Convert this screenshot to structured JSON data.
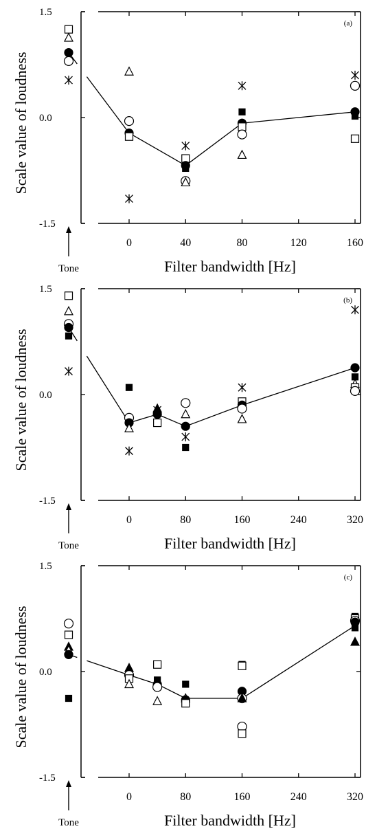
{
  "figure": {
    "tone_label": "Tone"
  },
  "chart_data": [
    {
      "type": "scatter",
      "panel_label": "(a)",
      "xlabel": "Filter bandwidth [Hz]",
      "ylabel": "Scale value of loudness",
      "xticks": [
        0,
        40,
        80,
        120,
        160
      ],
      "yticks": [
        -1.5,
        0.0,
        1.5
      ],
      "ytick_labels": [
        "-1.5",
        "0.0",
        "1.5"
      ],
      "xlim": [
        0,
        160
      ],
      "ylim": [
        -1.5,
        1.5
      ],
      "tone": {
        "mean": 0.92,
        "points": [
          {
            "marker": "open-square",
            "y": 1.25
          },
          {
            "marker": "open-triangle",
            "y": 1.13
          },
          {
            "marker": "filled-circle",
            "y": 0.92
          },
          {
            "marker": "open-circle",
            "y": 0.8
          },
          {
            "marker": "asterisk",
            "y": 0.53
          }
        ]
      },
      "line": {
        "x": [
          0,
          40,
          80,
          160
        ],
        "y": [
          -0.22,
          -0.68,
          -0.08,
          0.08
        ]
      },
      "points": [
        {
          "marker": "open-triangle",
          "x": 0,
          "y": 0.65
        },
        {
          "marker": "open-circle",
          "x": 0,
          "y": -0.05
        },
        {
          "marker": "filled-circle",
          "x": 0,
          "y": -0.22
        },
        {
          "marker": "open-square",
          "x": 0,
          "y": -0.27
        },
        {
          "marker": "asterisk",
          "x": 0,
          "y": -1.15
        },
        {
          "marker": "asterisk",
          "x": 40,
          "y": -0.4
        },
        {
          "marker": "open-square",
          "x": 40,
          "y": -0.58
        },
        {
          "marker": "filled-square",
          "x": 40,
          "y": -0.72
        },
        {
          "marker": "filled-circle",
          "x": 40,
          "y": -0.68
        },
        {
          "marker": "open-circle",
          "x": 40,
          "y": -0.9
        },
        {
          "marker": "open-triangle",
          "x": 40,
          "y": -0.92
        },
        {
          "marker": "asterisk",
          "x": 80,
          "y": 0.45
        },
        {
          "marker": "filled-square",
          "x": 80,
          "y": 0.08
        },
        {
          "marker": "filled-circle",
          "x": 80,
          "y": -0.08
        },
        {
          "marker": "open-square",
          "x": 80,
          "y": -0.13
        },
        {
          "marker": "open-circle",
          "x": 80,
          "y": -0.24
        },
        {
          "marker": "open-triangle",
          "x": 80,
          "y": -0.53
        },
        {
          "marker": "asterisk",
          "x": 160,
          "y": 0.6
        },
        {
          "marker": "open-circle",
          "x": 160,
          "y": 0.45
        },
        {
          "marker": "filled-circle",
          "x": 160,
          "y": 0.08
        },
        {
          "marker": "filled-square",
          "x": 160,
          "y": 0.02
        },
        {
          "marker": "open-square",
          "x": 160,
          "y": -0.3
        }
      ]
    },
    {
      "type": "scatter",
      "panel_label": "(b)",
      "xlabel": "Filter bandwidth [Hz]",
      "ylabel": "Scale value of loudness",
      "xticks": [
        0,
        80,
        160,
        240,
        320
      ],
      "yticks": [
        -1.5,
        0.0,
        1.5
      ],
      "ytick_labels": [
        "-1.5",
        "0.0",
        "1.5"
      ],
      "xlim": [
        0,
        320
      ],
      "ylim": [
        -1.5,
        1.5
      ],
      "tone": {
        "mean": 0.95,
        "points": [
          {
            "marker": "open-square",
            "y": 1.4
          },
          {
            "marker": "open-triangle",
            "y": 1.18
          },
          {
            "marker": "open-circle",
            "y": 1.0
          },
          {
            "marker": "filled-circle",
            "y": 0.95
          },
          {
            "marker": "filled-square",
            "y": 0.83
          },
          {
            "marker": "asterisk",
            "y": 0.33
          }
        ]
      },
      "line": {
        "x": [
          0,
          40,
          80,
          160,
          320
        ],
        "y": [
          -0.4,
          -0.28,
          -0.45,
          -0.15,
          0.38
        ]
      },
      "points": [
        {
          "marker": "filled-square",
          "x": 0,
          "y": 0.1
        },
        {
          "marker": "open-circle",
          "x": 0,
          "y": -0.33
        },
        {
          "marker": "filled-circle",
          "x": 0,
          "y": -0.4
        },
        {
          "marker": "open-triangle",
          "x": 0,
          "y": -0.48
        },
        {
          "marker": "asterisk",
          "x": 0,
          "y": -0.8
        },
        {
          "marker": "filled-triangle",
          "x": 40,
          "y": -0.2
        },
        {
          "marker": "asterisk",
          "x": 40,
          "y": -0.22
        },
        {
          "marker": "filled-circle",
          "x": 40,
          "y": -0.28
        },
        {
          "marker": "open-square",
          "x": 40,
          "y": -0.4
        },
        {
          "marker": "open-circle",
          "x": 80,
          "y": -0.12
        },
        {
          "marker": "open-triangle",
          "x": 80,
          "y": -0.28
        },
        {
          "marker": "filled-circle",
          "x": 80,
          "y": -0.45
        },
        {
          "marker": "asterisk",
          "x": 80,
          "y": -0.6
        },
        {
          "marker": "filled-square",
          "x": 80,
          "y": -0.75
        },
        {
          "marker": "asterisk",
          "x": 160,
          "y": 0.1
        },
        {
          "marker": "open-square",
          "x": 160,
          "y": -0.1
        },
        {
          "marker": "filled-circle",
          "x": 160,
          "y": -0.15
        },
        {
          "marker": "open-circle",
          "x": 160,
          "y": -0.2
        },
        {
          "marker": "open-triangle",
          "x": 160,
          "y": -0.35
        },
        {
          "marker": "asterisk",
          "x": 320,
          "y": 1.2
        },
        {
          "marker": "filled-circle",
          "x": 320,
          "y": 0.38
        },
        {
          "marker": "filled-square",
          "x": 320,
          "y": 0.25
        },
        {
          "marker": "open-triangle",
          "x": 320,
          "y": 0.15
        },
        {
          "marker": "open-square",
          "x": 320,
          "y": 0.1
        },
        {
          "marker": "open-circle",
          "x": 320,
          "y": 0.05
        }
      ]
    },
    {
      "type": "scatter",
      "panel_label": "(c)",
      "xlabel": "Filter bandwidth [Hz]",
      "ylabel": "Scale value of loudness",
      "xticks": [
        0,
        80,
        160,
        240,
        320
      ],
      "yticks": [
        -1.5,
        0.0,
        1.5
      ],
      "ytick_labels": [
        "-1.5",
        "0.0",
        "1.5"
      ],
      "xlim": [
        0,
        320
      ],
      "ylim": [
        -1.5,
        1.5
      ],
      "tone": {
        "mean": 0.24,
        "points": [
          {
            "marker": "open-circle",
            "y": 0.68
          },
          {
            "marker": "open-square",
            "y": 0.52
          },
          {
            "marker": "filled-triangle",
            "y": 0.35
          },
          {
            "marker": "open-triangle",
            "y": 0.3
          },
          {
            "marker": "filled-circle",
            "y": 0.24
          },
          {
            "marker": "filled-square",
            "y": -0.38
          }
        ]
      },
      "line": {
        "x": [
          0,
          40,
          80,
          160,
          320
        ],
        "y": [
          -0.05,
          -0.18,
          -0.38,
          -0.38,
          0.65
        ]
      },
      "points": [
        {
          "marker": "filled-triangle",
          "x": 0,
          "y": 0.05
        },
        {
          "marker": "open-circle",
          "x": 0,
          "y": -0.05
        },
        {
          "marker": "open-square",
          "x": 0,
          "y": -0.1
        },
        {
          "marker": "open-triangle",
          "x": 0,
          "y": -0.18
        },
        {
          "marker": "open-square",
          "x": 40,
          "y": 0.1
        },
        {
          "marker": "filled-square",
          "x": 40,
          "y": -0.12
        },
        {
          "marker": "filled-circle",
          "x": 40,
          "y": -0.18
        },
        {
          "marker": "open-circle",
          "x": 40,
          "y": -0.22
        },
        {
          "marker": "open-triangle",
          "x": 40,
          "y": -0.42
        },
        {
          "marker": "filled-square",
          "x": 80,
          "y": -0.18
        },
        {
          "marker": "open-triangle",
          "x": 80,
          "y": -0.38
        },
        {
          "marker": "filled-circle",
          "x": 80,
          "y": -0.4
        },
        {
          "marker": "open-square",
          "x": 80,
          "y": -0.45
        },
        {
          "marker": "filled-square",
          "x": 160,
          "y": 0.1
        },
        {
          "marker": "open-square",
          "x": 160,
          "y": 0.08
        },
        {
          "marker": "filled-circle",
          "x": 160,
          "y": -0.28
        },
        {
          "marker": "open-circle",
          "x": 160,
          "y": -0.38
        },
        {
          "marker": "filled-triangle",
          "x": 160,
          "y": -0.38
        },
        {
          "marker": "open-circle",
          "x": 160,
          "y": -0.78
        },
        {
          "marker": "open-square",
          "x": 160,
          "y": -0.88
        },
        {
          "marker": "filled-square",
          "x": 320,
          "y": 0.78
        },
        {
          "marker": "open-square",
          "x": 320,
          "y": 0.75
        },
        {
          "marker": "open-circle",
          "x": 320,
          "y": 0.72
        },
        {
          "marker": "filled-circle",
          "x": 320,
          "y": 0.7
        },
        {
          "marker": "filled-square",
          "x": 320,
          "y": 0.62
        },
        {
          "marker": "filled-triangle",
          "x": 320,
          "y": 0.42
        }
      ]
    }
  ]
}
